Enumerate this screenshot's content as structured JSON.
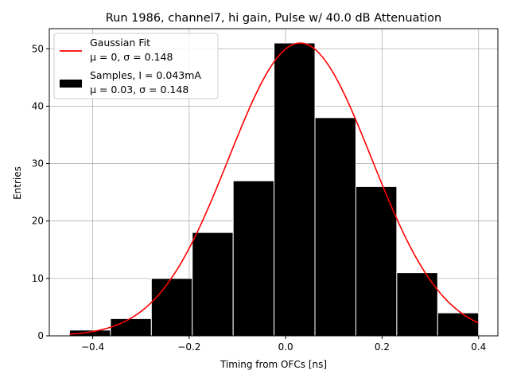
{
  "chart_data": {
    "type": "bar",
    "title": "Run 1986, channel7, hi gain, Pulse w/ 40.0 dB Attenuation",
    "xlabel": "Timing from OFCs [ns]",
    "ylabel": "Entries",
    "xlim": [
      -0.49,
      0.44
    ],
    "ylim": [
      0,
      53.5
    ],
    "grid": true,
    "legend_position": "top-left",
    "xticks": [
      -0.4,
      -0.2,
      0.0,
      0.2,
      0.4
    ],
    "xtick_labels": [
      "−0.4",
      "−0.2",
      "0.0",
      "0.2",
      "0.4"
    ],
    "yticks": [
      0,
      10,
      20,
      30,
      40,
      50
    ],
    "ytick_labels": [
      "0",
      "10",
      "20",
      "30",
      "40",
      "50"
    ],
    "histogram": {
      "bin_edges": [
        -0.448,
        -0.3632,
        -0.2784,
        -0.1936,
        -0.1088,
        -0.024,
        0.0608,
        0.1456,
        0.2304,
        0.3152,
        0.4
      ],
      "counts": [
        1,
        3,
        10,
        18,
        27,
        51,
        38,
        26,
        11,
        4
      ],
      "color": "#000000",
      "edgecolor": "#ffffff"
    },
    "fit_curve": {
      "type": "gaussian",
      "amplitude": 51,
      "mean": 0.03,
      "sigma": 0.148,
      "x_range": [
        -0.448,
        0.4
      ],
      "color": "#ff0000"
    },
    "legend": [
      {
        "type": "line",
        "color": "#ff0000",
        "line1": "Gaussian Fit",
        "line2": "μ = 0, σ = 0.148"
      },
      {
        "type": "patch",
        "color": "#000000",
        "line1": "Samples, I = 0.043mA",
        "line2": "μ = 0.03, σ = 0.148"
      }
    ]
  }
}
